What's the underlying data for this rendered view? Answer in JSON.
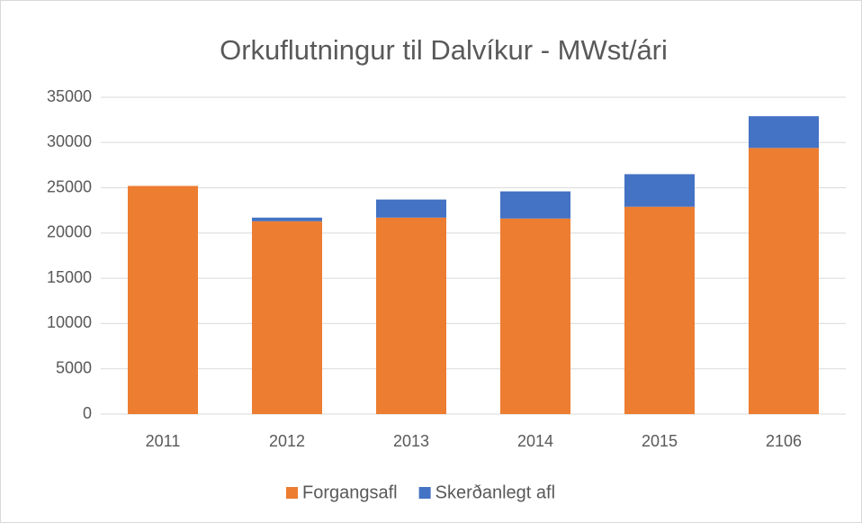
{
  "chart_data": {
    "type": "stacked_bar",
    "title": "Orkuflutningur til Dalvíkur - MWst/ári",
    "categories": [
      "2011",
      "2012",
      "2013",
      "2014",
      "2015",
      "2106"
    ],
    "series": [
      {
        "name": "Forgangsafl",
        "color": "#ed7d31",
        "values": [
          25200,
          21300,
          21700,
          21600,
          22900,
          29400
        ]
      },
      {
        "name": "Skerðanlegt afl",
        "color": "#4472c4",
        "values": [
          0,
          400,
          2000,
          3000,
          3600,
          3500
        ]
      }
    ],
    "ylim": [
      0,
      35000
    ],
    "yticks": [
      0,
      5000,
      10000,
      15000,
      20000,
      25000,
      30000,
      35000
    ],
    "grid": true,
    "legend": "bottom"
  }
}
